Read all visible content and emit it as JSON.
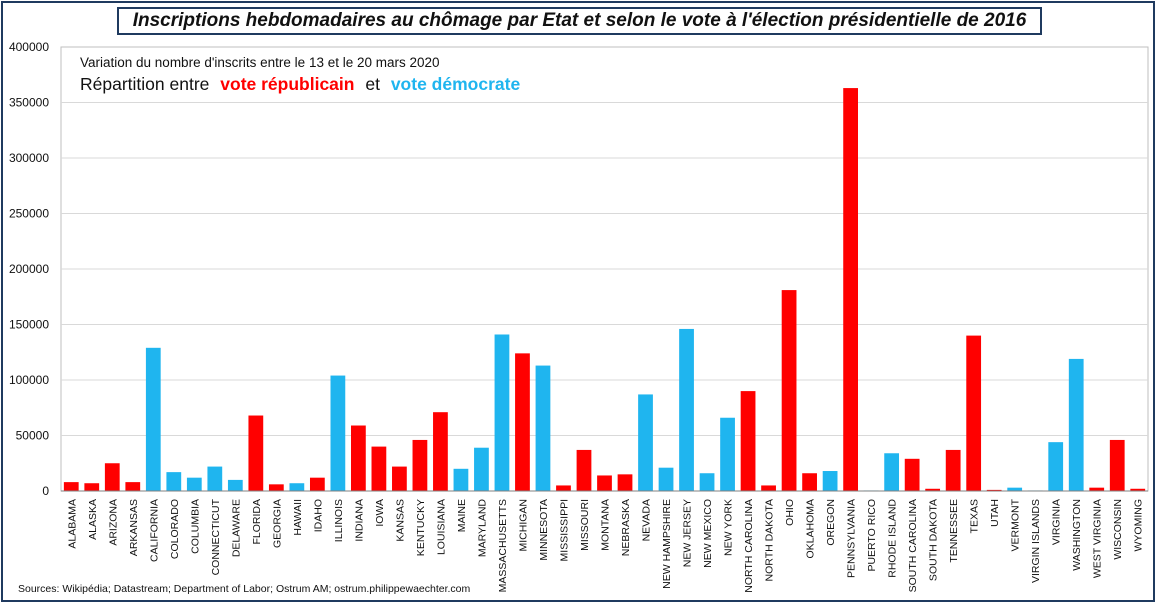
{
  "title": "Inscriptions hebdomadaires au chômage par Etat et selon le vote à l'élection présidentielle de 2016",
  "subtitle": "Variation du nombre d'inscrits entre le 13 et le 20 mars 2020",
  "legend": {
    "prefix": "Répartition entre",
    "republican": "vote républicain",
    "connector": "et",
    "democrat": "vote démocrate"
  },
  "source": "Sources: Wikipédia; Datastream; Department of Labor; Ostrum AM;  ostrum.philippewaechter.com",
  "colors": {
    "republican": "#ff0000",
    "democrat": "#1fb5ef"
  },
  "chart_data": {
    "type": "bar",
    "title": "Inscriptions hebdomadaires au chômage par Etat et selon le vote à l'élection présidentielle de 2016",
    "subtitle": "Variation du nombre d'inscrits entre le 13 et le 20 mars 2020",
    "xlabel": "",
    "ylabel": "",
    "ylim": [
      0,
      400000
    ],
    "yticks": [
      "0",
      "50000",
      "100000",
      "150000",
      "200000",
      "250000",
      "300000",
      "350000",
      "400000"
    ],
    "grid": true,
    "legend": "top-left",
    "categories": [
      "ALABAMA",
      "ALASKA",
      "ARIZONA",
      "ARKANSAS",
      "CALIFORNIA",
      "COLORADO",
      "COLUMBIA",
      "CONNECTICUT",
      "DELAWARE",
      "FLORIDA",
      "GEORGIA",
      "HAWAII",
      "IDAHO",
      "ILLINOIS",
      "INDIANA",
      "IOWA",
      "KANSAS",
      "KENTUCKY",
      "LOUISIANA",
      "MAINE",
      "MARYLAND",
      "MASSACHUSETTS",
      "MICHIGAN",
      "MINNESOTA",
      "MISSISSIPPI",
      "MISSOURI",
      "MONTANA",
      "NEBRASKA",
      "NEVADA",
      "NEW HAMPSHIRE",
      "NEW JERSEY",
      "NEW MEXICO",
      "NEW YORK",
      "NORTH CAROLINA",
      "NORTH DAKOTA",
      "OHIO",
      "OKLAHOMA",
      "OREGON",
      "PENNSYLVANIA",
      "PUERTO RICO",
      "RHODE ISLAND",
      "SOUTH CAROLINA",
      "SOUTH DAKOTA",
      "TENNESSEE",
      "TEXAS",
      "UTAH",
      "VERMONT",
      "VIRGIN ISLANDS",
      "VIRGINIA",
      "WASHINGTON",
      "WEST VIRGINIA",
      "WISCONSIN",
      "WYOMING"
    ],
    "values": [
      8000,
      7000,
      25000,
      8000,
      129000,
      17000,
      12000,
      22000,
      10000,
      68000,
      6000,
      7000,
      12000,
      104000,
      59000,
      40000,
      22000,
      46000,
      71000,
      20000,
      39000,
      141000,
      124000,
      113000,
      5000,
      37000,
      14000,
      15000,
      87000,
      21000,
      146000,
      16000,
      66000,
      90000,
      5000,
      181000,
      16000,
      18000,
      363000,
      500,
      34000,
      29000,
      2000,
      37000,
      140000,
      1000,
      3000,
      500,
      44000,
      119000,
      3000,
      46000,
      2000
    ],
    "party": [
      "R",
      "R",
      "R",
      "R",
      "D",
      "D",
      "D",
      "D",
      "D",
      "R",
      "R",
      "D",
      "R",
      "D",
      "R",
      "R",
      "R",
      "R",
      "R",
      "D",
      "D",
      "D",
      "R",
      "D",
      "R",
      "R",
      "R",
      "R",
      "D",
      "D",
      "D",
      "D",
      "D",
      "R",
      "R",
      "R",
      "R",
      "D",
      "R",
      "D",
      "D",
      "R",
      "R",
      "R",
      "R",
      "R",
      "D",
      "D",
      "D",
      "D",
      "R",
      "R",
      "R"
    ]
  }
}
